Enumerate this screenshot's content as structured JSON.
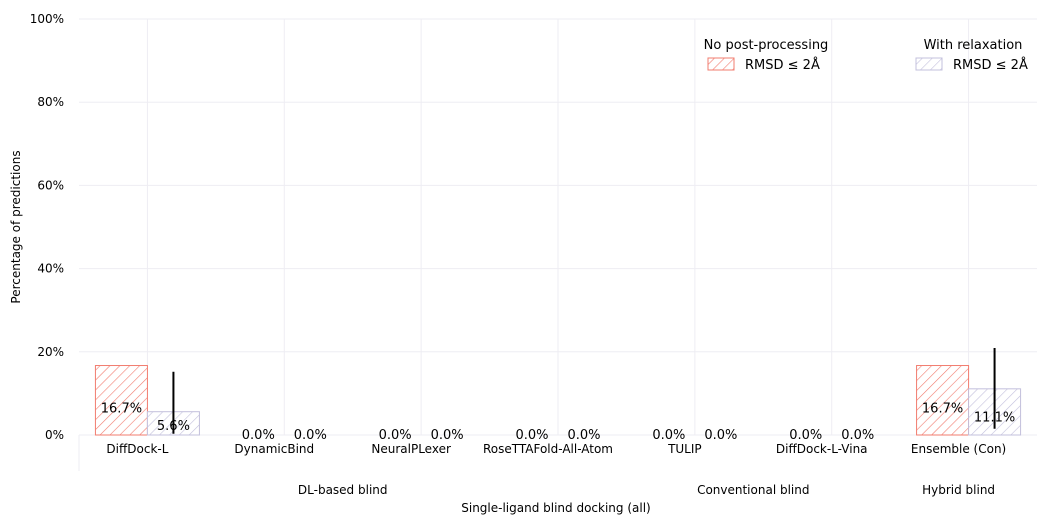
{
  "chart_data": {
    "type": "bar",
    "title": "",
    "xlabel": "Single-ligand blind docking (all)",
    "ylabel": "Percentage of predictions",
    "ylim": [
      0,
      100
    ],
    "y_ticks": [
      "0%",
      "20%",
      "40%",
      "60%",
      "80%",
      "100%"
    ],
    "grid": true,
    "categories": [
      "DiffDock-L",
      "DynamicBind",
      "NeuralPLexer",
      "RoseTTAFold-All-Atom",
      "TULIP",
      "DiffDock-L-Vina",
      "Ensemble (Con)"
    ],
    "groups": [
      {
        "label": "DL-based blind",
        "categories": [
          "DiffDock-L",
          "DynamicBind",
          "NeuralPLexer",
          "RoseTTAFold-All-Atom"
        ]
      },
      {
        "label": "Conventional blind",
        "categories": [
          "TULIP",
          "DiffDock-L-Vina"
        ]
      },
      {
        "label": "Hybrid blind",
        "categories": [
          "Ensemble (Con)"
        ]
      }
    ],
    "series": [
      {
        "name": "RMSD ≤ 2Å",
        "legend_title": "No post-processing",
        "color": "#f27c6f",
        "values": [
          16.7,
          0.0,
          0.0,
          0.0,
          0.0,
          0.0,
          16.7
        ],
        "labels": [
          "16.7%",
          "0.0%",
          "0.0%",
          "0.0%",
          "0.0%",
          "0.0%",
          "16.7%"
        ],
        "error_high": [
          null,
          null,
          null,
          null,
          null,
          null,
          null
        ]
      },
      {
        "name": "RMSD ≤ 2Å",
        "legend_title": "With relaxation",
        "color": "#c3c0dc",
        "values": [
          5.6,
          0.0,
          0.0,
          0.0,
          0.0,
          0.0,
          11.1
        ],
        "labels": [
          "5.6%",
          "0.0%",
          "0.0%",
          "0.0%",
          "0.0%",
          "0.0%",
          "11.1%"
        ],
        "error_low": [
          0.3,
          null,
          null,
          null,
          null,
          null,
          1.5
        ],
        "error_high": [
          15.2,
          null,
          null,
          null,
          null,
          null,
          20.9
        ]
      }
    ],
    "legend_position": "top-right",
    "bar_pattern": "diagonal-hatch"
  }
}
